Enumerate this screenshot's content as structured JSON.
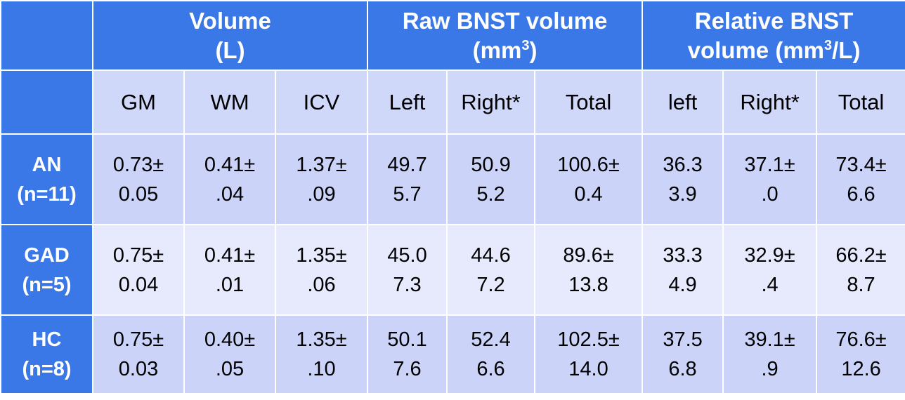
{
  "table": {
    "groups": [
      {
        "line1": "Volume",
        "line2": "(L)"
      },
      {
        "line1": "Raw BNST volume",
        "line2a": "(mm",
        "sup": "3",
        "line2b": ")"
      },
      {
        "line1": "Relative BNST",
        "line2a": "volume (mm",
        "sup": "3",
        "line2b": "/L)"
      }
    ],
    "columns": [
      "GM",
      "WM",
      "ICV",
      "Left",
      "Right*",
      "Total",
      "left",
      "Right*",
      "Total"
    ],
    "rows": [
      {
        "label1": "AN",
        "label2": "(n=11)",
        "cells": [
          [
            "0.73±",
            "0.05"
          ],
          [
            "0.41±",
            ".04"
          ],
          [
            "1.37±",
            ".09"
          ],
          [
            "49.7",
            "5.7"
          ],
          [
            "50.9",
            "5.2"
          ],
          [
            "100.6±",
            "0.4"
          ],
          [
            "36.3",
            "3.9"
          ],
          [
            "37.1±",
            ".0"
          ],
          [
            "73.4±",
            "6.6"
          ]
        ]
      },
      {
        "label1": "GAD",
        "label2": "(n=5)",
        "cells": [
          [
            "0.75±",
            "0.04"
          ],
          [
            "0.41±",
            ".01"
          ],
          [
            "1.35±",
            ".06"
          ],
          [
            "45.0",
            "7.3"
          ],
          [
            "44.6",
            "7.2"
          ],
          [
            "89.6±",
            "13.8"
          ],
          [
            "33.3",
            "4.9"
          ],
          [
            "32.9±",
            ".4"
          ],
          [
            "66.2±",
            "8.7"
          ]
        ]
      },
      {
        "label1": "HC",
        "label2": "(n=8)",
        "cells": [
          [
            "0.75±",
            "0.03"
          ],
          [
            "0.40±",
            ".05"
          ],
          [
            "1.35±",
            ".10"
          ],
          [
            "50.1",
            "7.6"
          ],
          [
            "52.4",
            "6.6"
          ],
          [
            "102.5±",
            "14.0"
          ],
          [
            "37.5",
            "6.8"
          ],
          [
            "39.1±",
            ".9"
          ],
          [
            "76.6±",
            "12.6"
          ]
        ]
      }
    ],
    "colors": {
      "header_bg": "#3a78e8",
      "cell_dark": "#cbd4f8",
      "cell_light": "#e6eafc",
      "grid_line": "#ffffff"
    }
  }
}
